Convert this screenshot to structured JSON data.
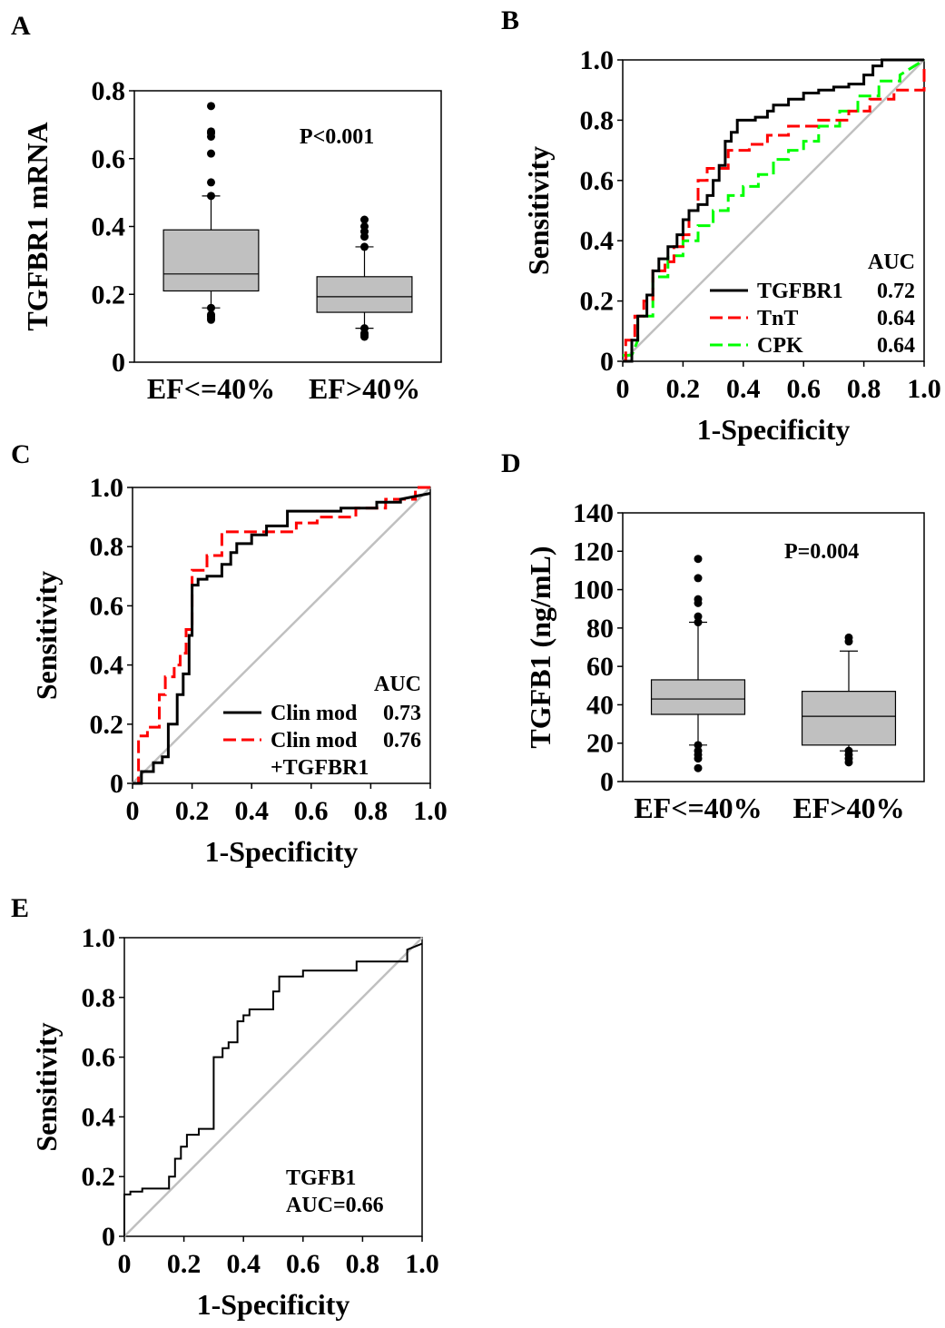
{
  "chart_data": [
    {
      "panel": "A",
      "type": "box",
      "ylabel": "TGFBR1 mRNA",
      "ylim": [
        0,
        0.8
      ],
      "yticks": [
        "0",
        "0.2",
        "0.4",
        "0.6",
        "0.8"
      ],
      "categories": [
        "EF<=40%",
        "EF>40%"
      ],
      "annotation": "P<0.001",
      "boxes": [
        {
          "q1": 0.21,
          "median": 0.26,
          "q3": 0.39,
          "whisker_low": 0.16,
          "whisker_high": 0.49,
          "outliers": [
            0.125,
            0.13,
            0.135,
            0.14,
            0.16,
            0.49,
            0.53,
            0.615,
            0.665,
            0.675,
            0.68,
            0.755
          ]
        },
        {
          "q1": 0.147,
          "median": 0.193,
          "q3": 0.252,
          "whisker_low": 0.1,
          "whisker_high": 0.34,
          "outliers": [
            0.075,
            0.08,
            0.085,
            0.1,
            0.34,
            0.37,
            0.385,
            0.4,
            0.42
          ]
        }
      ]
    },
    {
      "panel": "B",
      "type": "line",
      "xlabel": "1-Specificity",
      "ylabel": "Sensitivity",
      "xlim": [
        0,
        1
      ],
      "ylim": [
        0,
        1
      ],
      "xticks": [
        "0",
        "0.2",
        "0.4",
        "0.6",
        "0.8",
        "1.0"
      ],
      "yticks": [
        "0",
        "0.2",
        "0.4",
        "0.6",
        "0.8",
        "1.0"
      ],
      "legend_title": "AUC",
      "legend_position": "bottom-right",
      "series": [
        {
          "name": "TGFBR1",
          "auc": "0.72",
          "color": "#000000",
          "dash": "solid",
          "x": [
            0,
            0.03,
            0.03,
            0.05,
            0.05,
            0.08,
            0.08,
            0.1,
            0.1,
            0.12,
            0.12,
            0.15,
            0.15,
            0.18,
            0.18,
            0.2,
            0.2,
            0.22,
            0.22,
            0.25,
            0.25,
            0.28,
            0.28,
            0.3,
            0.3,
            0.32,
            0.32,
            0.34,
            0.34,
            0.36,
            0.36,
            0.38,
            0.38,
            0.42,
            0.42,
            0.44,
            0.44,
            0.48,
            0.48,
            0.5,
            0.5,
            0.55,
            0.55,
            0.6,
            0.6,
            0.65,
            0.65,
            0.7,
            0.7,
            0.75,
            0.75,
            0.8,
            0.8,
            0.83,
            0.83,
            0.86,
            0.86,
            0.9,
            0.9,
            1.0
          ],
          "y": [
            0,
            0,
            0.07,
            0.07,
            0.15,
            0.15,
            0.22,
            0.22,
            0.3,
            0.3,
            0.34,
            0.34,
            0.38,
            0.38,
            0.42,
            0.42,
            0.47,
            0.47,
            0.5,
            0.5,
            0.52,
            0.52,
            0.55,
            0.55,
            0.6,
            0.6,
            0.65,
            0.65,
            0.73,
            0.73,
            0.76,
            0.76,
            0.8,
            0.8,
            0.8,
            0.8,
            0.81,
            0.81,
            0.83,
            0.83,
            0.85,
            0.85,
            0.87,
            0.87,
            0.89,
            0.89,
            0.9,
            0.9,
            0.91,
            0.91,
            0.92,
            0.92,
            0.95,
            0.95,
            0.98,
            0.98,
            1.0,
            1.0,
            1.0,
            1.0
          ]
        },
        {
          "name": "TnT",
          "auc": "0.64",
          "color": "#ff0000",
          "dash": "long-dash",
          "x": [
            0,
            0.01,
            0.01,
            0.04,
            0.04,
            0.07,
            0.07,
            0.1,
            0.1,
            0.14,
            0.14,
            0.17,
            0.17,
            0.2,
            0.2,
            0.22,
            0.22,
            0.25,
            0.25,
            0.28,
            0.28,
            0.35,
            0.35,
            0.42,
            0.42,
            0.48,
            0.48,
            0.55,
            0.55,
            0.65,
            0.65,
            0.75,
            0.75,
            0.82,
            0.82,
            0.9,
            0.9,
            1.0,
            1.0
          ],
          "y": [
            0,
            0,
            0.07,
            0.07,
            0.15,
            0.15,
            0.2,
            0.2,
            0.3,
            0.3,
            0.33,
            0.33,
            0.38,
            0.38,
            0.42,
            0.42,
            0.5,
            0.5,
            0.6,
            0.6,
            0.64,
            0.64,
            0.7,
            0.7,
            0.72,
            0.72,
            0.75,
            0.75,
            0.78,
            0.78,
            0.8,
            0.8,
            0.83,
            0.83,
            0.87,
            0.87,
            0.9,
            0.9,
            0.98
          ]
        },
        {
          "name": "CPK",
          "auc": "0.64",
          "color": "#00ff00",
          "dash": "long-dash",
          "x": [
            0,
            0.03,
            0.05,
            0.05,
            0.1,
            0.1,
            0.15,
            0.15,
            0.2,
            0.2,
            0.25,
            0.25,
            0.3,
            0.3,
            0.35,
            0.35,
            0.4,
            0.4,
            0.45,
            0.45,
            0.5,
            0.5,
            0.55,
            0.55,
            0.6,
            0.6,
            0.65,
            0.65,
            0.72,
            0.72,
            0.78,
            0.78,
            0.85,
            0.85,
            0.92,
            0.92,
            1.0
          ],
          "y": [
            0.02,
            0.02,
            0.07,
            0.15,
            0.15,
            0.28,
            0.28,
            0.35,
            0.35,
            0.4,
            0.4,
            0.45,
            0.45,
            0.5,
            0.5,
            0.55,
            0.55,
            0.58,
            0.58,
            0.62,
            0.62,
            0.67,
            0.67,
            0.7,
            0.7,
            0.73,
            0.73,
            0.78,
            0.78,
            0.83,
            0.83,
            0.88,
            0.88,
            0.93,
            0.93,
            0.95,
            1.0
          ]
        }
      ],
      "reference_line": {
        "color": "#c0c0c0"
      }
    },
    {
      "panel": "C",
      "type": "line",
      "xlabel": "1-Specificity",
      "ylabel": "Sensitivity",
      "xlim": [
        0,
        1
      ],
      "ylim": [
        0,
        1
      ],
      "xticks": [
        "0",
        "0.2",
        "0.4",
        "0.6",
        "0.8",
        "1.0"
      ],
      "yticks": [
        "0",
        "0.2",
        "0.4",
        "0.6",
        "0.8",
        "1.0"
      ],
      "legend_title": "AUC",
      "legend_position": "bottom-right",
      "series": [
        {
          "name": "Clin mod",
          "auc": "0.73",
          "color": "#000000",
          "dash": "solid",
          "x": [
            0,
            0.03,
            0.03,
            0.07,
            0.07,
            0.1,
            0.1,
            0.12,
            0.12,
            0.15,
            0.15,
            0.17,
            0.17,
            0.19,
            0.19,
            0.2,
            0.2,
            0.22,
            0.22,
            0.25,
            0.25,
            0.3,
            0.3,
            0.33,
            0.33,
            0.35,
            0.35,
            0.4,
            0.4,
            0.45,
            0.45,
            0.52,
            0.52,
            0.6,
            0.6,
            0.7,
            0.7,
            0.82,
            0.82,
            0.9,
            0.9,
            1.0
          ],
          "y": [
            0,
            0,
            0.04,
            0.04,
            0.07,
            0.07,
            0.09,
            0.09,
            0.2,
            0.2,
            0.3,
            0.3,
            0.37,
            0.37,
            0.5,
            0.5,
            0.67,
            0.67,
            0.69,
            0.69,
            0.7,
            0.7,
            0.74,
            0.74,
            0.78,
            0.78,
            0.81,
            0.81,
            0.84,
            0.84,
            0.87,
            0.87,
            0.92,
            0.92,
            0.92,
            0.92,
            0.93,
            0.93,
            0.95,
            0.95,
            0.96,
            0.98
          ]
        },
        {
          "name": "Clin mod",
          "name2": "+TGFBR1",
          "auc": "0.76",
          "color": "#ff0000",
          "dash": "long-dash",
          "x": [
            0,
            0.02,
            0.02,
            0.05,
            0.05,
            0.09,
            0.09,
            0.11,
            0.11,
            0.14,
            0.14,
            0.16,
            0.16,
            0.18,
            0.18,
            0.2,
            0.2,
            0.25,
            0.25,
            0.3,
            0.3,
            0.35,
            0.35,
            0.45,
            0.45,
            0.55,
            0.55,
            0.62,
            0.62,
            0.75,
            0.75,
            0.85,
            0.85,
            0.95,
            0.95,
            1.0
          ],
          "y": [
            0,
            0,
            0.16,
            0.16,
            0.19,
            0.19,
            0.3,
            0.3,
            0.36,
            0.36,
            0.4,
            0.4,
            0.44,
            0.44,
            0.52,
            0.52,
            0.72,
            0.72,
            0.77,
            0.77,
            0.85,
            0.85,
            0.85,
            0.85,
            0.85,
            0.85,
            0.88,
            0.88,
            0.9,
            0.9,
            0.93,
            0.93,
            0.96,
            0.96,
            1.0,
            1.0
          ]
        }
      ],
      "reference_line": {
        "color": "#c0c0c0"
      }
    },
    {
      "panel": "D",
      "type": "box",
      "ylabel": "TGFB1 (ng/mL)",
      "ylim": [
        0,
        140
      ],
      "yticks": [
        "0",
        "20",
        "40",
        "60",
        "80",
        "100",
        "120",
        "140"
      ],
      "categories": [
        "EF<=40%",
        "EF>40%"
      ],
      "annotation": "P=0.004",
      "boxes": [
        {
          "q1": 35,
          "median": 43,
          "q3": 53,
          "whisker_low": 19,
          "whisker_high": 83,
          "outliers": [
            7,
            12,
            14,
            16,
            19,
            83,
            86,
            93,
            95,
            106,
            116
          ]
        },
        {
          "q1": 19,
          "median": 34,
          "q3": 47,
          "whisker_low": 16,
          "whisker_high": 68,
          "outliers": [
            10,
            12,
            14,
            16,
            73,
            75
          ]
        }
      ]
    },
    {
      "panel": "E",
      "type": "line",
      "xlabel": "1-Specificity",
      "ylabel": "Sensitivity",
      "xlim": [
        0,
        1
      ],
      "ylim": [
        0,
        1
      ],
      "xticks": [
        "0",
        "0.2",
        "0.4",
        "0.6",
        "0.8",
        "1.0"
      ],
      "yticks": [
        "0",
        "0.2",
        "0.4",
        "0.6",
        "0.8",
        "1.0"
      ],
      "annotation_lines": [
        "TGFB1",
        "AUC=0.66"
      ],
      "series": [
        {
          "name": "TGFB1",
          "color": "#000000",
          "dash": "solid",
          "x": [
            0,
            0,
            0.02,
            0.02,
            0.06,
            0.06,
            0.15,
            0.15,
            0.17,
            0.17,
            0.19,
            0.19,
            0.21,
            0.21,
            0.25,
            0.25,
            0.3,
            0.3,
            0.33,
            0.33,
            0.35,
            0.35,
            0.38,
            0.38,
            0.4,
            0.4,
            0.42,
            0.42,
            0.45,
            0.45,
            0.5,
            0.5,
            0.52,
            0.52,
            0.55,
            0.55,
            0.6,
            0.6,
            0.7,
            0.7,
            0.78,
            0.78,
            0.88,
            0.88,
            0.95,
            0.95,
            1.0
          ],
          "y": [
            0,
            0.14,
            0.14,
            0.15,
            0.15,
            0.16,
            0.16,
            0.2,
            0.2,
            0.26,
            0.26,
            0.3,
            0.3,
            0.34,
            0.34,
            0.36,
            0.36,
            0.6,
            0.6,
            0.63,
            0.63,
            0.65,
            0.65,
            0.72,
            0.72,
            0.74,
            0.74,
            0.76,
            0.76,
            0.76,
            0.76,
            0.82,
            0.82,
            0.87,
            0.87,
            0.87,
            0.87,
            0.89,
            0.89,
            0.89,
            0.89,
            0.92,
            0.92,
            0.92,
            0.92,
            0.96,
            0.98
          ]
        }
      ],
      "reference_line": {
        "color": "#c0c0c0"
      }
    }
  ],
  "panel_labels": [
    "A",
    "B",
    "C",
    "D",
    "E"
  ]
}
